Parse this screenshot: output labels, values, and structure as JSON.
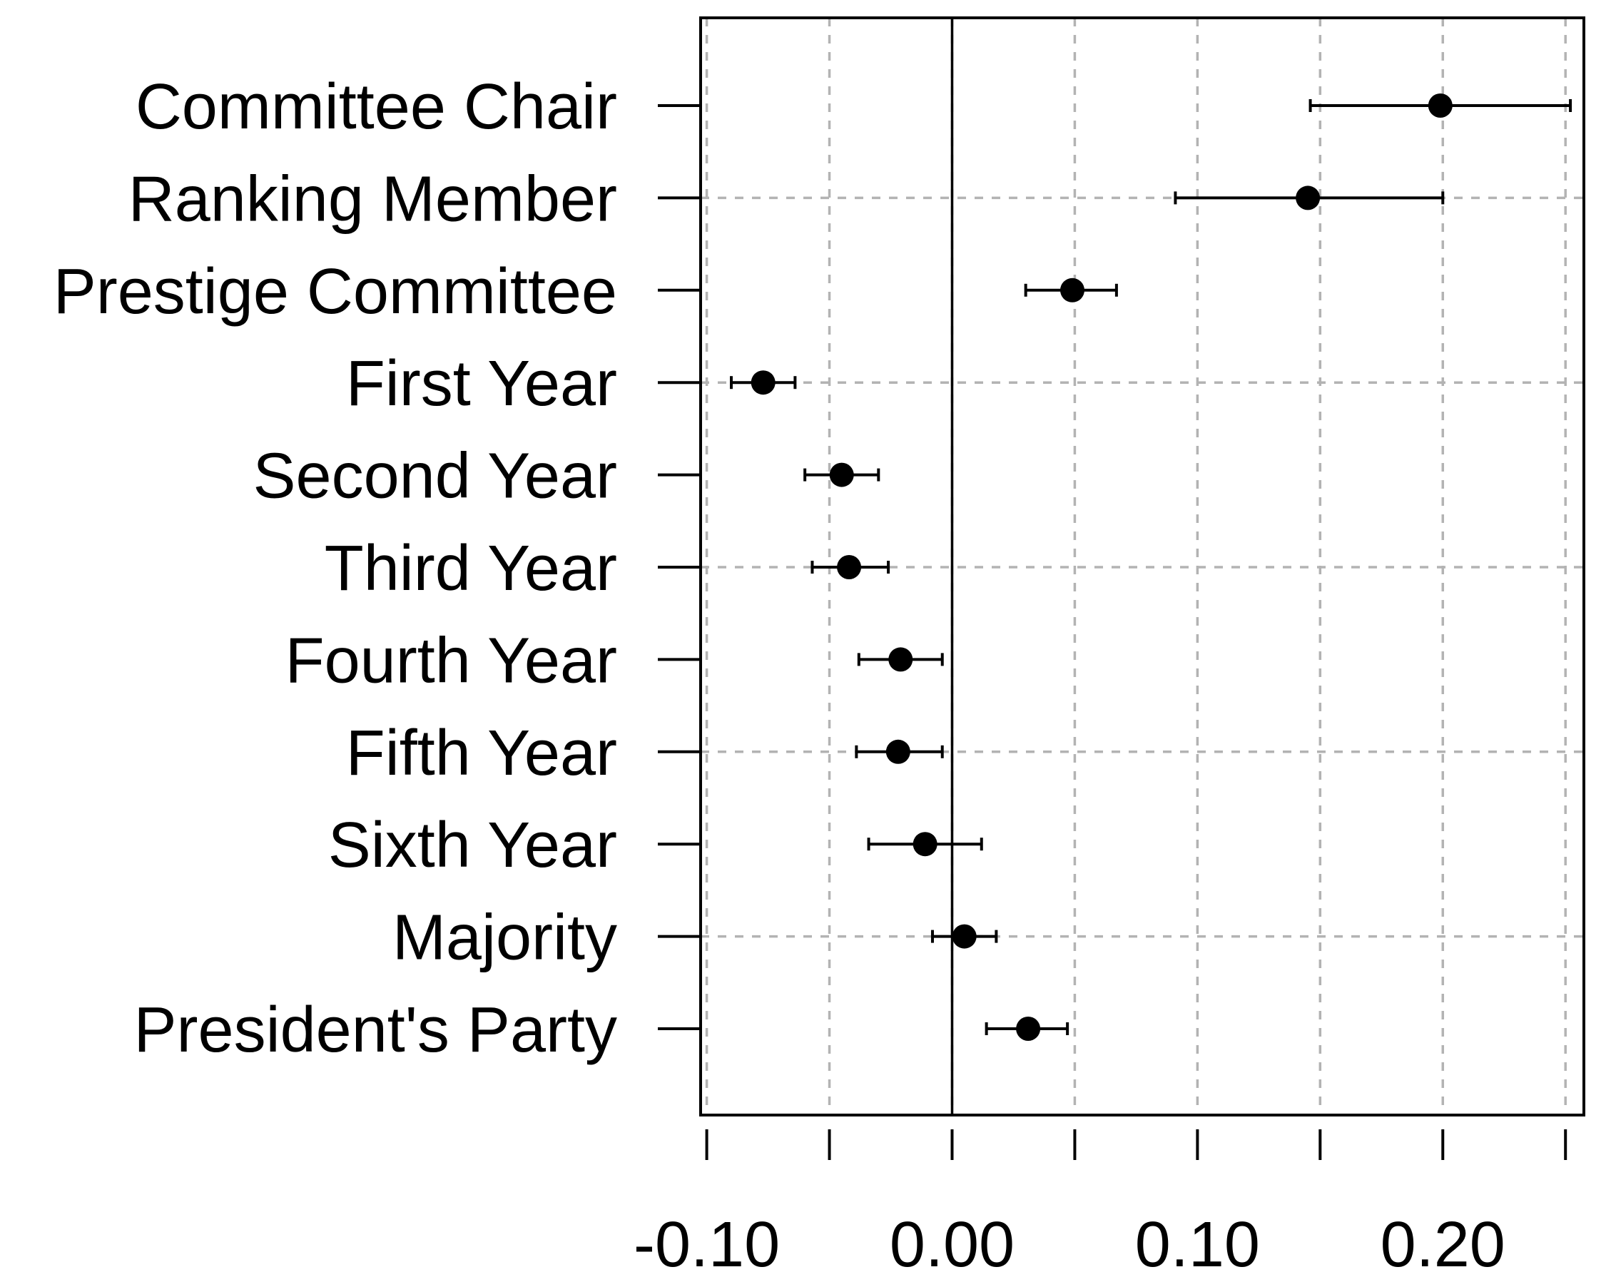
{
  "chart_data": {
    "type": "scatter",
    "orientation": "horizontal",
    "title": "",
    "xlabel": "",
    "ylabel": "",
    "grid": true,
    "xlim": [
      -0.1025,
      0.2575
    ],
    "x_ticks": [
      -0.1,
      -0.05,
      0.0,
      0.05,
      0.1,
      0.15,
      0.2,
      0.25
    ],
    "x_tick_labels": [
      {
        "value": -0.1,
        "label": "-0.10"
      },
      {
        "value": 0.0,
        "label": "0.00"
      },
      {
        "value": 0.1,
        "label": "0.10"
      },
      {
        "value": 0.2,
        "label": "0.20"
      }
    ],
    "zero_line": 0.0,
    "points": [
      {
        "label": "Committee Chair",
        "estimate": 0.199,
        "lower": 0.146,
        "upper": 0.252
      },
      {
        "label": "Ranking Member",
        "estimate": 0.145,
        "lower": 0.091,
        "upper": 0.2
      },
      {
        "label": "Prestige Committee",
        "estimate": 0.049,
        "lower": 0.03,
        "upper": 0.067
      },
      {
        "label": "First Year",
        "estimate": -0.077,
        "lower": -0.09,
        "upper": -0.064
      },
      {
        "label": "Second Year",
        "estimate": -0.045,
        "lower": -0.06,
        "upper": -0.03
      },
      {
        "label": "Third Year",
        "estimate": -0.042,
        "lower": -0.057,
        "upper": -0.026
      },
      {
        "label": "Fourth Year",
        "estimate": -0.021,
        "lower": -0.038,
        "upper": -0.004
      },
      {
        "label": "Fifth Year",
        "estimate": -0.022,
        "lower": -0.039,
        "upper": -0.004
      },
      {
        "label": "Sixth Year",
        "estimate": -0.011,
        "lower": -0.034,
        "upper": 0.012
      },
      {
        "label": "Majority",
        "estimate": 0.005,
        "lower": -0.008,
        "upper": 0.018
      },
      {
        "label": "President's Party",
        "estimate": 0.031,
        "lower": 0.014,
        "upper": 0.047
      }
    ]
  }
}
